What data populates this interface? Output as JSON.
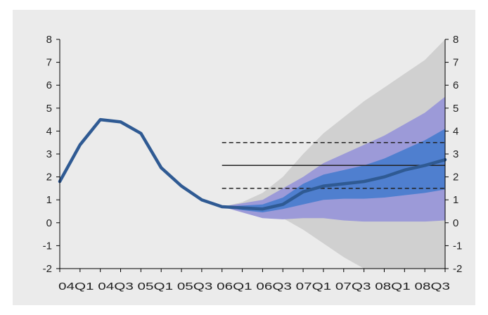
{
  "chart_data": {
    "type": "area",
    "title": "",
    "xlabel": "",
    "ylabel": "",
    "ylim": [
      -2,
      8
    ],
    "y_ticks": [
      -2,
      -1,
      0,
      1,
      2,
      3,
      4,
      5,
      6,
      7,
      8
    ],
    "y_tick_labels_left": [
      "-2",
      "-1",
      "0",
      "1",
      "2",
      "3",
      "4",
      "5",
      "6",
      "7",
      "8"
    ],
    "y_tick_labels_right": [
      "-2",
      "-1",
      "0",
      "1",
      "2",
      "3",
      "4",
      "5",
      "6",
      "7",
      "8"
    ],
    "x_tick_label_text": "04Q1 04Q3 05Q1 05Q3 06Q1 06Q3 07Q1 07Q3 08Q1 08Q3",
    "x_tick_labels": [
      "04Q1",
      "04Q3",
      "05Q1",
      "05Q3",
      "06Q1",
      "06Q3",
      "07Q1",
      "07Q3",
      "08Q1",
      "08Q3"
    ],
    "quarters_per_label": 2,
    "grid": false,
    "legend": "none",
    "series": [
      {
        "values": [
          1.8,
          3.4,
          4.5,
          4.4,
          3.9,
          2.4,
          1.6,
          1.0,
          0.7,
          0.65,
          0.6,
          0.8,
          1.35,
          1.6,
          1.7,
          1.8,
          2.0,
          2.3,
          2.5,
          2.75
        ],
        "start_index": 0,
        "color": "#2f5a93"
      }
    ],
    "fan_bands": [
      {
        "level": "outer",
        "color": "#d0d0d0",
        "lower": [
          0.7,
          0.5,
          0.3,
          0.2,
          -0.3,
          -0.9,
          -1.5,
          -2.0,
          -2.0,
          -2.0,
          -2.0,
          -2.0
        ],
        "upper": [
          0.7,
          0.9,
          1.3,
          2.0,
          3.0,
          3.9,
          4.6,
          5.3,
          5.9,
          6.5,
          7.1,
          8.0
        ]
      },
      {
        "level": "middle",
        "color": "#9c9ad8",
        "lower": [
          0.7,
          0.45,
          0.2,
          0.15,
          0.2,
          0.2,
          0.1,
          0.05,
          0.05,
          0.05,
          0.05,
          0.1
        ],
        "upper": [
          0.7,
          0.85,
          1.0,
          1.5,
          2.0,
          2.6,
          3.0,
          3.4,
          3.8,
          4.3,
          4.8,
          5.5
        ]
      },
      {
        "level": "inner",
        "color": "#4f7fcf",
        "lower": [
          0.7,
          0.55,
          0.45,
          0.6,
          0.8,
          1.0,
          1.05,
          1.05,
          1.1,
          1.2,
          1.3,
          1.45
        ],
        "upper": [
          0.7,
          0.75,
          0.8,
          1.1,
          1.7,
          2.1,
          2.3,
          2.5,
          2.8,
          3.2,
          3.6,
          4.1
        ]
      }
    ],
    "fan_start_index": 8,
    "reference_lines": [
      {
        "y": 3.5,
        "style": "dashed",
        "x_start_index": 8
      },
      {
        "y": 2.5,
        "style": "solid",
        "x_start_index": 8
      },
      {
        "y": 1.5,
        "style": "dashed",
        "x_start_index": 8
      }
    ]
  }
}
